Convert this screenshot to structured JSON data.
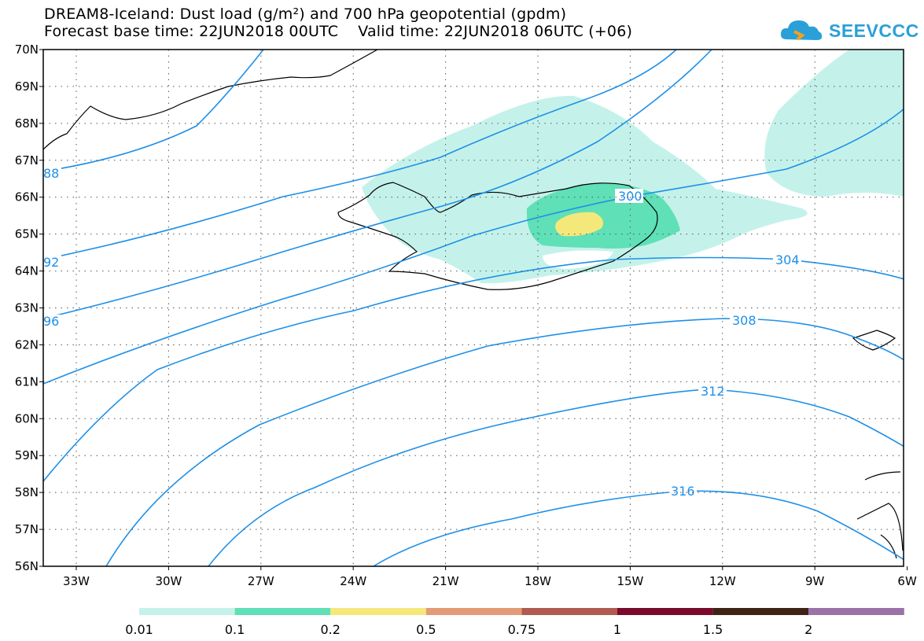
{
  "header": {
    "title_line1": "DREAM8-Iceland: Dust load (g/m²) and 700 hPa geopotential (gpdm)",
    "title_line2": "Forecast base time: 22JUN2018 00UTC    Valid time: 22JUN2018 06UTC (+06)"
  },
  "logo": {
    "text": "SEEVCCC",
    "icon": "cloud-icon",
    "color": "#2ba0d8"
  },
  "map": {
    "lat_labels": [
      "70N",
      "69N",
      "68N",
      "67N",
      "66N",
      "65N",
      "64N",
      "63N",
      "62N",
      "61N",
      "60N",
      "59N",
      "58N",
      "57N",
      "56N"
    ],
    "lon_labels": [
      "33W",
      "30W",
      "27W",
      "24W",
      "21W",
      "18W",
      "15W",
      "12W",
      "9W",
      "6W"
    ],
    "contour_color": "#1e90e8",
    "contour_labels": [
      "88",
      "92",
      "96",
      "300",
      "304",
      "308",
      "312",
      "316"
    ]
  },
  "legend": {
    "colors": [
      "#c4f2ea",
      "#5fe0b6",
      "#f5e87a",
      "#e29b76",
      "#b05a52",
      "#7a0a2e",
      "#3e2416",
      "#9b72a8"
    ],
    "tick_labels": [
      "0.01",
      "0.1",
      "0.2",
      "0.5",
      "0.75",
      "1",
      "1.5",
      "2"
    ]
  }
}
